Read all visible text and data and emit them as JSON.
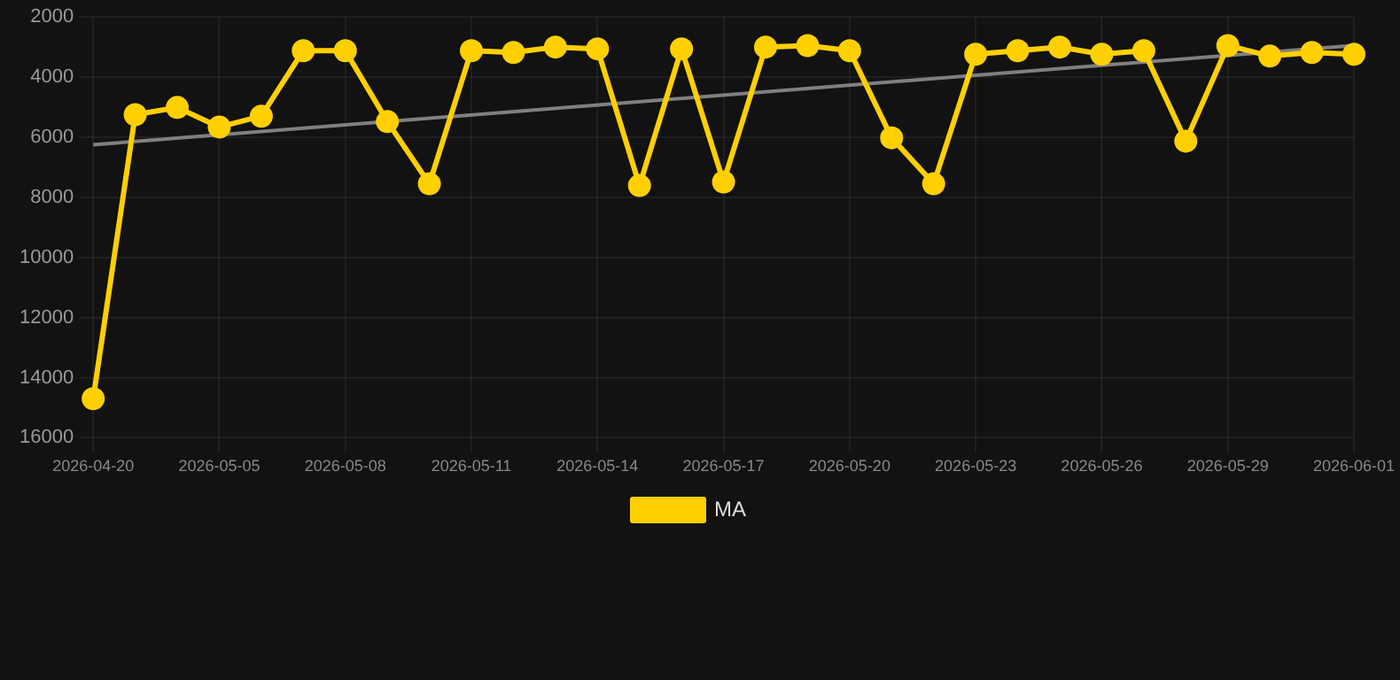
{
  "chart_data": {
    "type": "line",
    "categories": [
      "2026-04-20",
      null,
      null,
      "2026-05-05",
      null,
      null,
      "2026-05-08",
      null,
      null,
      "2026-05-11",
      null,
      null,
      "2026-05-14",
      null,
      null,
      "2026-05-17",
      null,
      null,
      "2026-05-20",
      null,
      null,
      "2026-05-23",
      null,
      null,
      "2026-05-26",
      null,
      null,
      "2026-05-29",
      null,
      null,
      "2026-06-01"
    ],
    "series": [
      {
        "name": "MA",
        "color": "#ffd000",
        "marker": "circle",
        "values": [
          14700,
          5250,
          5010,
          5660,
          5300,
          3120,
          3120,
          5480,
          7550,
          3120,
          3180,
          3000,
          3060,
          7610,
          3060,
          7490,
          3000,
          2950,
          3120,
          6020,
          7550,
          3240,
          3120,
          3000,
          3240,
          3120,
          6130,
          2950,
          3300,
          3180,
          3240
        ]
      },
      {
        "type": "line",
        "color": "#808080",
        "marker": "none",
        "values": [
          6250,
          null,
          null,
          null,
          null,
          null,
          null,
          null,
          null,
          null,
          null,
          null,
          null,
          null,
          null,
          null,
          null,
          null,
          null,
          null,
          null,
          null,
          null,
          null,
          null,
          null,
          null,
          null,
          null,
          null,
          2950
        ]
      }
    ],
    "ylim": [
      16000,
      2000
    ],
    "yticks": [
      2000,
      4000,
      6000,
      8000,
      10000,
      12000,
      14000,
      16000
    ],
    "grid": true,
    "legend": "bottom"
  }
}
